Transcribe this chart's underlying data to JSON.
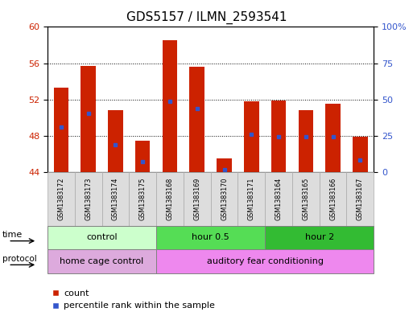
{
  "title": "GDS5157 / ILMN_2593541",
  "samples": [
    "GSM1383172",
    "GSM1383173",
    "GSM1383174",
    "GSM1383175",
    "GSM1383168",
    "GSM1383169",
    "GSM1383170",
    "GSM1383171",
    "GSM1383164",
    "GSM1383165",
    "GSM1383166",
    "GSM1383167"
  ],
  "bar_tops": [
    53.3,
    55.7,
    50.8,
    47.5,
    58.5,
    55.6,
    45.5,
    51.8,
    51.9,
    50.8,
    51.5,
    47.9
  ],
  "bar_base": 44.0,
  "percentile_values": [
    49.0,
    50.5,
    47.0,
    45.2,
    51.8,
    51.0,
    44.3,
    48.2,
    47.9,
    47.9,
    47.9,
    45.3
  ],
  "ylim_left": [
    44,
    60
  ],
  "yticks_left": [
    44,
    48,
    52,
    56,
    60
  ],
  "ylim_right": [
    0,
    100
  ],
  "yticks_right": [
    0,
    25,
    50,
    75,
    100
  ],
  "bar_color": "#cc2200",
  "marker_color": "#3355cc",
  "bar_width": 0.55,
  "time_groups": [
    {
      "label": "control",
      "start": 0,
      "end": 4,
      "color": "#ccffcc"
    },
    {
      "label": "hour 0.5",
      "start": 4,
      "end": 8,
      "color": "#55dd55"
    },
    {
      "label": "hour 2",
      "start": 8,
      "end": 12,
      "color": "#33bb33"
    }
  ],
  "protocol_groups": [
    {
      "label": "home cage control",
      "start": 0,
      "end": 4,
      "color": "#ddaadd"
    },
    {
      "label": "auditory fear conditioning",
      "start": 4,
      "end": 12,
      "color": "#ee88ee"
    }
  ],
  "time_label": "time",
  "protocol_label": "protocol",
  "legend_count_label": "count",
  "legend_percentile_label": "percentile rank within the sample",
  "left_axis_color": "#cc2200",
  "right_axis_color": "#3355cc",
  "title_fontsize": 11,
  "tick_fontsize": 8,
  "cell_color": "#dddddd",
  "cell_border_color": "#aaaaaa"
}
